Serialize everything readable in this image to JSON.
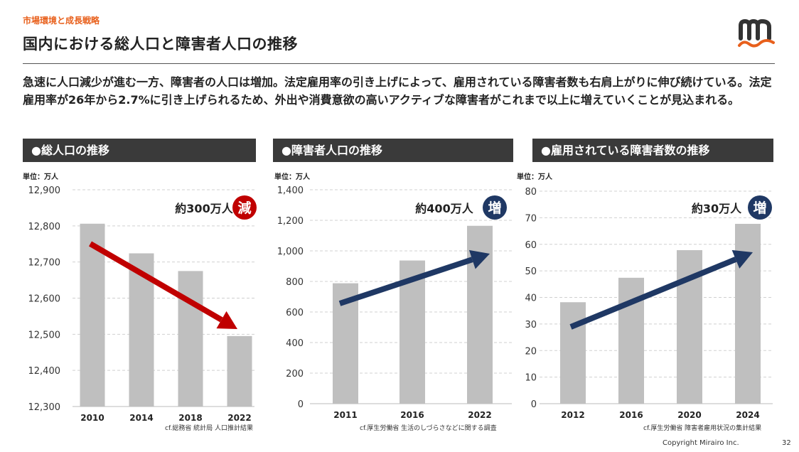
{
  "header": {
    "subtitle": "市場環境と成長戦略",
    "title": "国内における総人口と障害者人口の推移"
  },
  "lead": "急速に人口減少が進む一方、障害者の人口は増加。法定雇用率の引き上げによって、雇用されている障害者数も右肩上がりに伸び続けている。法定雇用率が26年から2.7%に引き上げられるため、外出や消費意欲の高いアクティブな障害者がこれまで以上に増えていくことが見込まれる。",
  "colors": {
    "bar": "#bfbfbf",
    "down": "#c00000",
    "up": "#1f3864",
    "header_bg": "#3a3a3a",
    "accent": "#e8601c"
  },
  "chart_data": [
    {
      "type": "bar",
      "title": "●総人口の推移",
      "unit": "単位：万人",
      "categories": [
        "2010",
        "2014",
        "2018",
        "2022"
      ],
      "values": [
        12806,
        12724,
        12675,
        12495
      ],
      "ylim": [
        12300,
        12900
      ],
      "yticks": [
        12300,
        12400,
        12500,
        12600,
        12700,
        12800,
        12900
      ],
      "ytick_labels": [
        "12,300",
        "12,400",
        "12,500",
        "12,600",
        "12,700",
        "12,800",
        "12,900"
      ],
      "grid": true,
      "trend": "down",
      "annotation": "約300万人",
      "badge": "減",
      "source": "cf.総務省 統計局 人口推計結果"
    },
    {
      "type": "bar",
      "title": "●障害者人口の推移",
      "unit": "単位：万人",
      "categories": [
        "2011",
        "2016",
        "2022"
      ],
      "values": [
        788,
        937,
        1164
      ],
      "ylim": [
        0,
        1400
      ],
      "yticks": [
        0,
        200,
        400,
        600,
        800,
        1000,
        1200,
        1400
      ],
      "ytick_labels": [
        "0",
        "200",
        "400",
        "600",
        "800",
        "1,000",
        "1,200",
        "1,400"
      ],
      "grid": true,
      "trend": "up",
      "annotation": "約400万人",
      "badge": "増",
      "source": "cf.厚生労働省 生活のしづらさなどに関する調査"
    },
    {
      "type": "bar",
      "title": "●雇用されている障害者数の推移",
      "unit": "単位：万人",
      "categories": [
        "2012",
        "2016",
        "2020",
        "2024"
      ],
      "values": [
        38.2,
        47.4,
        57.8,
        67.7
      ],
      "ylim": [
        0,
        80
      ],
      "yticks": [
        0,
        10,
        20,
        30,
        40,
        50,
        60,
        70,
        80
      ],
      "ytick_labels": [
        "0",
        "10",
        "20",
        "30",
        "40",
        "50",
        "60",
        "70",
        "80"
      ],
      "grid": true,
      "trend": "up",
      "annotation": "約30万人",
      "badge": "増",
      "source": "cf.厚生労働省 障害者雇用状況の集計結果"
    }
  ],
  "footer": {
    "copyright": "Copyright Mirairo Inc.",
    "page": "32"
  }
}
